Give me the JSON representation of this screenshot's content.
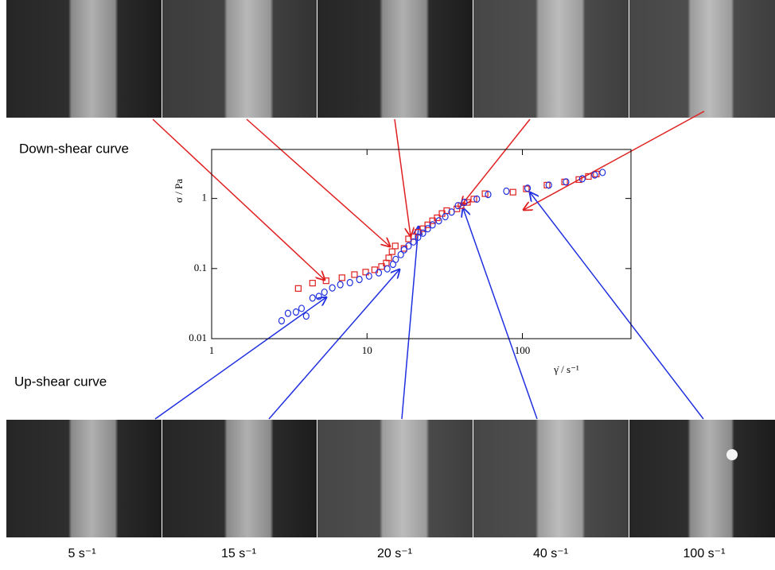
{
  "chart_data": {
    "type": "scatter",
    "x_label": "γ̇ / s⁻¹",
    "y_label": "σ / Pa",
    "xscale": "log",
    "yscale": "log",
    "xlim": [
      1,
      500
    ],
    "ylim": [
      0.01,
      5
    ],
    "xticks": [
      1,
      10,
      100
    ],
    "yticks": [
      0.01,
      0.1,
      1
    ],
    "series": [
      {
        "color": "#e02020",
        "marker": "square",
        "x": [
          3.61,
          4.46,
          5.45,
          6.9,
          8.3,
          9.8,
          11.2,
          12.4,
          13.3,
          13.8,
          14.5,
          15.2,
          17.3,
          18.5,
          19.9,
          21.3,
          22.9,
          24.6,
          26.4,
          28.3,
          30.4,
          32.6,
          37.9,
          40.3,
          44.3,
          48.7,
          57.5,
          87,
          106,
          144,
          187,
          231,
          266,
          299
        ],
        "values": [
          0.052,
          0.062,
          0.067,
          0.074,
          0.082,
          0.089,
          0.096,
          0.107,
          0.12,
          0.142,
          0.174,
          0.21,
          0.194,
          0.265,
          0.286,
          0.33,
          0.37,
          0.42,
          0.48,
          0.53,
          0.61,
          0.67,
          0.71,
          0.79,
          0.88,
          0.98,
          1.17,
          1.23,
          1.37,
          1.55,
          1.72,
          1.86,
          2.06,
          2.23
        ]
      },
      {
        "color": "#2030e0",
        "marker": "circle",
        "x": [
          2.82,
          3.1,
          3.49,
          3.79,
          4.06,
          4.46,
          4.9,
          5.32,
          5.98,
          6.73,
          7.76,
          8.93,
          10.3,
          11.9,
          13.5,
          14.7,
          15.3,
          16.5,
          17.3,
          18.5,
          19.9,
          21.3,
          22.9,
          24.6,
          26.4,
          29,
          31.9,
          35,
          38.5,
          42.3,
          50.9,
          60.2,
          78.9,
          108,
          148,
          191,
          243,
          292,
          328
        ],
        "values": [
          0.018,
          0.023,
          0.024,
          0.027,
          0.021,
          0.038,
          0.04,
          0.046,
          0.053,
          0.059,
          0.063,
          0.07,
          0.078,
          0.087,
          0.099,
          0.115,
          0.135,
          0.158,
          0.185,
          0.21,
          0.24,
          0.28,
          0.32,
          0.37,
          0.42,
          0.48,
          0.55,
          0.64,
          0.79,
          0.88,
          0.98,
          1.14,
          1.27,
          1.4,
          1.55,
          1.72,
          1.91,
          2.17,
          2.35
        ]
      }
    ],
    "annotations": [
      "Down-shear curve",
      "Up-shear curve"
    ],
    "image_labels": [
      "5 s⁻¹",
      "15 s⁻¹",
      "20 s⁻¹",
      "40 s⁻¹",
      "100 s⁻¹"
    ]
  }
}
